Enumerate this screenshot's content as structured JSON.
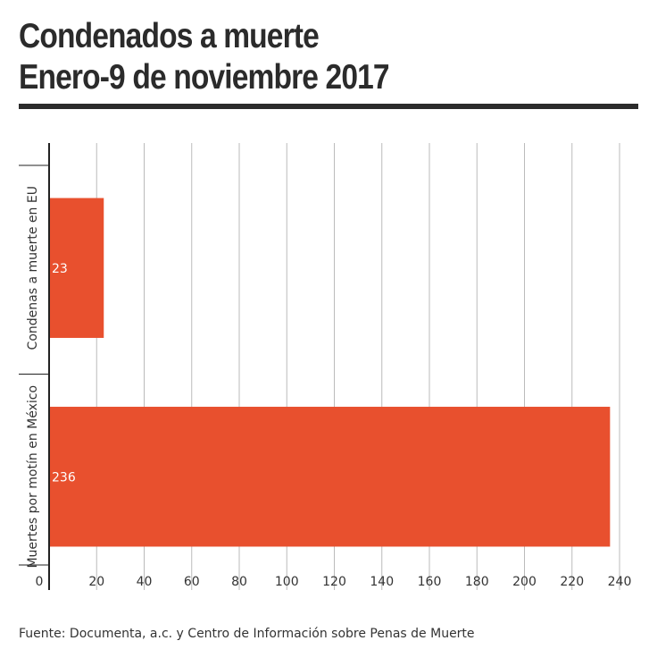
{
  "title_line1": "Condenados a muerte",
  "title_line2": "Enero-9 de noviembre 2017",
  "source": "Fuente: Documenta, a.c. y Centro de Información sobre Penas de Muerte",
  "colors": {
    "bar": "#e8502e",
    "grid": "#bbbbbb",
    "axis": "#222222",
    "text": "#333333"
  },
  "chart_data": {
    "type": "bar",
    "orientation": "horizontal",
    "categories": [
      "Condenas a muerte en EU",
      "Muertes por motín en México"
    ],
    "values": [
      23,
      236
    ],
    "title": "Condenados a muerte Enero-9 de noviembre 2017",
    "xlim": [
      0,
      240
    ],
    "xticks": [
      0,
      20,
      40,
      60,
      80,
      100,
      120,
      140,
      160,
      180,
      200,
      220,
      240
    ],
    "grid": true
  }
}
